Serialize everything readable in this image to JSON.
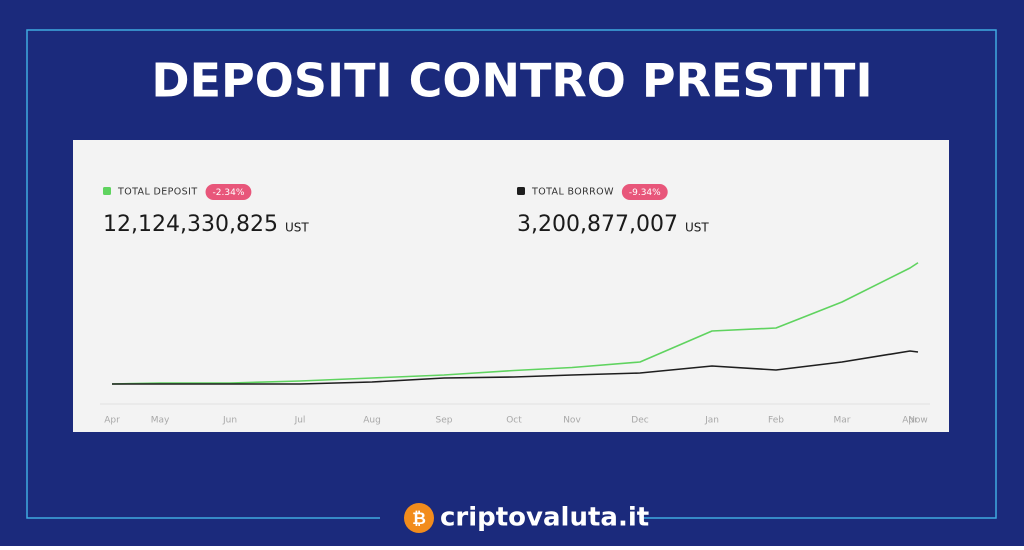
{
  "chart_data": {
    "type": "line",
    "title": "DEPOSITI CONTRO PRESTITI",
    "categories": [
      "Apr",
      "May",
      "Jun",
      "Jul",
      "Aug",
      "Sep",
      "Oct",
      "Nov",
      "Dec",
      "Jan",
      "Feb",
      "Mar",
      "Apr",
      "Now"
    ],
    "series": [
      {
        "name": "TOTAL DEPOSIT",
        "color": "#5fd35f",
        "change": "-2.34%",
        "total": "12,124,330,825",
        "unit": "UST",
        "values": [
          0,
          100000000,
          100000000,
          300000000,
          600000000,
          900000000,
          1350000000,
          1650000000,
          2200000000,
          5300000000,
          5600000000,
          8200000000,
          11600000000,
          12124330825
        ]
      },
      {
        "name": "TOTAL BORROW",
        "color": "#1e1e1e",
        "change": "-9.34%",
        "total": "3,200,877,007",
        "unit": "UST",
        "values": [
          0,
          0,
          0,
          0,
          200000000,
          600000000,
          700000000,
          900000000,
          1100000000,
          1800000000,
          1400000000,
          2200000000,
          3300000000,
          3200877007
        ]
      }
    ],
    "ylim": [
      0,
      13000000000
    ],
    "brand": "criptovaluta.it"
  }
}
